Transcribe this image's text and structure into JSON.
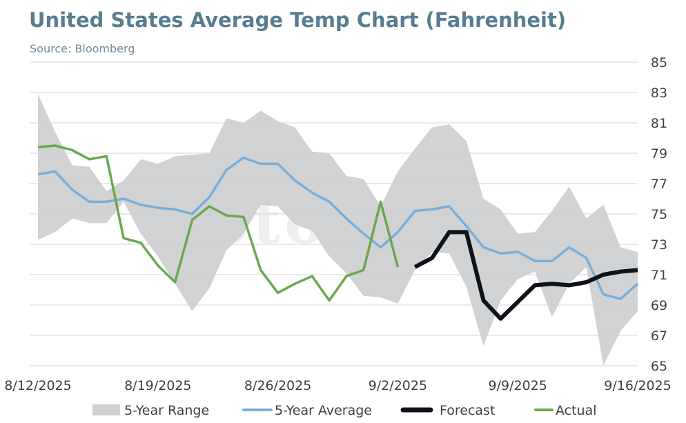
{
  "header": {
    "title": "United States Average Temp Chart (Fahrenheit)",
    "subtitle": "Source: Bloomberg"
  },
  "watermark": "StoneX",
  "colors": {
    "range": "#cfd0d1",
    "average": "#78aedb",
    "forecast": "#0d1319",
    "actual": "#6aa84f",
    "grid": "#d6d6d6",
    "title": "#587d91"
  },
  "chart_data": {
    "type": "line",
    "title": "United States Average Temp Chart (Fahrenheit)",
    "ylim": [
      65,
      85
    ],
    "yticks": [
      65,
      67,
      69,
      71,
      73,
      75,
      77,
      79,
      81,
      83,
      85
    ],
    "y_axis_side": "right",
    "grid": true,
    "legend_position": "bottom",
    "x_tick_labels": [
      "8/12/2025",
      "8/19/2025",
      "8/26/2025",
      "9/2/2025",
      "9/9/2025",
      "9/16/2025"
    ],
    "x_tick_days": [
      0,
      7,
      14,
      21,
      28,
      35
    ],
    "legend": [
      "5-Year Range",
      "5-Year Average",
      "Forecast",
      "Actual"
    ],
    "range": {
      "name": "5-Year Range",
      "x": [
        "8/12/2025",
        "8/13/2025",
        "8/14/2025",
        "8/15/2025",
        "8/16/2025",
        "8/17/2025",
        "8/18/2025",
        "8/19/2025",
        "8/20/2025",
        "8/21/2025",
        "8/22/2025",
        "8/23/2025",
        "8/24/2025",
        "8/25/2025",
        "8/26/2025",
        "8/27/2025",
        "8/28/2025",
        "8/29/2025",
        "8/30/2025",
        "8/31/2025",
        "9/1/2025",
        "9/2/2025",
        "9/3/2025",
        "9/4/2025",
        "9/5/2025",
        "9/6/2025",
        "9/7/2025",
        "9/8/2025",
        "9/9/2025",
        "9/10/2025",
        "9/11/2025",
        "9/12/2025",
        "9/13/2025",
        "9/14/2025",
        "9/15/2025",
        "9/16/2025"
      ],
      "high": [
        82.9,
        80.4,
        78.2,
        78.1,
        76.5,
        77.2,
        78.6,
        78.3,
        78.8,
        78.9,
        79.0,
        81.3,
        81.0,
        81.8,
        81.1,
        80.7,
        79.1,
        79.0,
        77.5,
        77.3,
        75.5,
        77.8,
        79.3,
        80.7,
        80.9,
        79.8,
        76.0,
        75.3,
        73.7,
        73.8,
        75.2,
        76.8,
        74.7,
        75.6,
        72.8,
        72.5
      ],
      "low": [
        73.3,
        73.8,
        74.7,
        74.4,
        74.4,
        75.8,
        73.7,
        72.2,
        70.4,
        68.6,
        70.1,
        72.6,
        73.7,
        75.6,
        75.5,
        74.3,
        73.9,
        72.2,
        71.1,
        69.6,
        69.5,
        69.1,
        71.3,
        72.5,
        72.4,
        70.2,
        66.3,
        69.3,
        70.7,
        71.2,
        68.2,
        70.4,
        71.5,
        65.0,
        67.3,
        68.6
      ]
    },
    "series": [
      {
        "name": "5-Year Average",
        "x": [
          "8/12/2025",
          "8/13/2025",
          "8/14/2025",
          "8/15/2025",
          "8/16/2025",
          "8/17/2025",
          "8/18/2025",
          "8/19/2025",
          "8/20/2025",
          "8/21/2025",
          "8/22/2025",
          "8/23/2025",
          "8/24/2025",
          "8/25/2025",
          "8/26/2025",
          "8/27/2025",
          "8/28/2025",
          "8/29/2025",
          "8/30/2025",
          "8/31/2025",
          "9/1/2025",
          "9/2/2025",
          "9/3/2025",
          "9/4/2025",
          "9/5/2025",
          "9/6/2025",
          "9/7/2025",
          "9/8/2025",
          "9/9/2025",
          "9/10/2025",
          "9/11/2025",
          "9/12/2025",
          "9/13/2025",
          "9/14/2025",
          "9/15/2025",
          "9/16/2025"
        ],
        "values": [
          77.6,
          77.8,
          76.6,
          75.8,
          75.8,
          76.0,
          75.6,
          75.4,
          75.3,
          75.0,
          76.1,
          77.9,
          78.7,
          78.3,
          78.3,
          77.2,
          76.4,
          75.8,
          74.7,
          73.7,
          72.8,
          73.8,
          75.2,
          75.3,
          75.5,
          74.2,
          72.8,
          72.4,
          72.5,
          71.9,
          71.9,
          72.8,
          72.1,
          69.7,
          69.4,
          70.4
        ]
      },
      {
        "name": "Forecast",
        "x": [
          "9/3/2025",
          "9/4/2025",
          "9/5/2025",
          "9/6/2025",
          "9/7/2025",
          "9/8/2025",
          "9/9/2025",
          "9/10/2025",
          "9/11/2025",
          "9/12/2025",
          "9/13/2025",
          "9/14/2025",
          "9/15/2025",
          "9/16/2025"
        ],
        "values": [
          71.5,
          72.1,
          73.8,
          73.8,
          69.3,
          68.1,
          69.2,
          70.3,
          70.4,
          70.3,
          70.5,
          71.0,
          71.2,
          71.3
        ]
      },
      {
        "name": "Actual",
        "x": [
          "8/12/2025",
          "8/13/2025",
          "8/14/2025",
          "8/15/2025",
          "8/16/2025",
          "8/17/2025",
          "8/18/2025",
          "8/19/2025",
          "8/20/2025",
          "8/21/2025",
          "8/22/2025",
          "8/23/2025",
          "8/24/2025",
          "8/25/2025",
          "8/26/2025",
          "8/27/2025",
          "8/28/2025",
          "8/29/2025",
          "8/30/2025",
          "8/31/2025",
          "9/1/2025",
          "9/2/2025"
        ],
        "values": [
          79.4,
          79.5,
          79.2,
          78.6,
          78.8,
          73.4,
          73.1,
          71.6,
          70.5,
          74.6,
          75.5,
          74.9,
          74.8,
          71.3,
          69.8,
          70.4,
          70.9,
          69.3,
          70.9,
          71.3,
          75.8,
          71.5
        ]
      }
    ]
  }
}
